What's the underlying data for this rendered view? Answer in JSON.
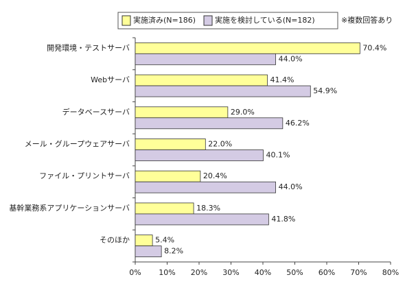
{
  "chart_data": {
    "type": "bar",
    "orientation": "horizontal",
    "note": "※複数回答あり",
    "categories": [
      "開発環境・テストサーバ",
      "Webサーバ",
      "データベースサーバ",
      "メール・グループウェアサーバ",
      "ファイル・プリントサーバ",
      "基幹業務系アプリケーションサーバ",
      "そのほか"
    ],
    "series": [
      {
        "name": "実施済み(N=186)",
        "color": "#ffff99",
        "values": [
          70.4,
          41.4,
          29.0,
          22.0,
          20.4,
          18.3,
          5.4
        ],
        "value_labels": [
          "70.4%",
          "41.4%",
          "29.0%",
          "22.0%",
          "20.4%",
          "18.3%",
          "5.4%"
        ]
      },
      {
        "name": "実施を検討している(N=182)",
        "color": "#d4cbe4",
        "values": [
          44.0,
          54.9,
          46.2,
          40.1,
          44.0,
          41.8,
          8.2
        ],
        "value_labels": [
          "44.0%",
          "54.9%",
          "46.2%",
          "40.1%",
          "44.0%",
          "41.8%",
          "8.2%"
        ]
      }
    ],
    "xlim": [
      0,
      80
    ],
    "xticks": [
      {
        "value": 0,
        "label": "0%"
      },
      {
        "value": 10,
        "label": "10%"
      },
      {
        "value": 20,
        "label": "20%"
      },
      {
        "value": 30,
        "label": "30%"
      },
      {
        "value": 40,
        "label": "40%"
      },
      {
        "value": 50,
        "label": "50%"
      },
      {
        "value": 60,
        "label": "60%"
      },
      {
        "value": 70,
        "label": "70%"
      },
      {
        "value": 80,
        "label": "80%"
      }
    ],
    "grid": false
  }
}
